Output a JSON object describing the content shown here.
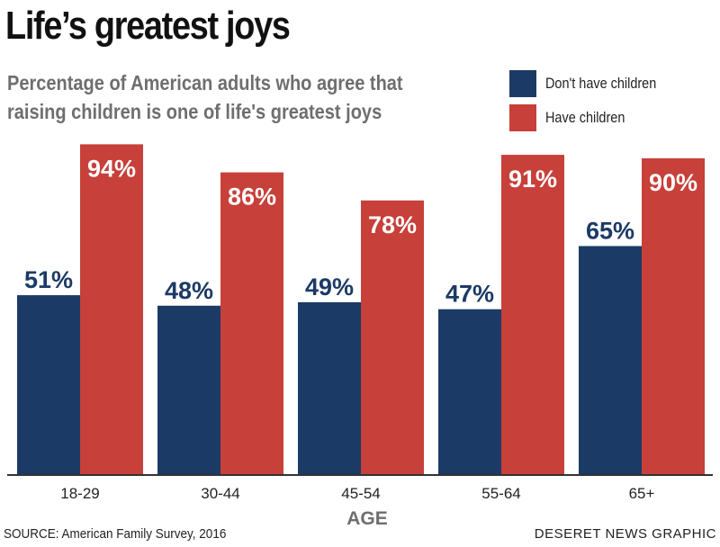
{
  "header": {
    "title": "Life’s greatest joys",
    "subtitle_line1": "Percentage of American adults who agree that",
    "subtitle_line2": "raising children is one of life's greatest joys"
  },
  "footer": {
    "source": "SOURCE: American Family Survey, 2016",
    "credit": "DESERET NEWS GRAPHIC"
  },
  "chart_data": {
    "type": "bar",
    "title": "Life’s greatest joys",
    "subtitle": "Percentage of American adults who agree that raising children is one of life's greatest joys",
    "xlabel": "AGE",
    "ylabel": "",
    "categories": [
      "18-29",
      "30-44",
      "45-54",
      "55-64",
      "65+"
    ],
    "series": [
      {
        "name": "Don't have children",
        "color": "#1c3a66",
        "values": [
          51,
          48,
          49,
          47,
          65
        ],
        "labels": [
          "51%",
          "48%",
          "49%",
          "47%",
          "65%"
        ]
      },
      {
        "name": "Have children",
        "color": "#c7403a",
        "values": [
          94,
          86,
          78,
          91,
          90
        ],
        "labels": [
          "94%",
          "86%",
          "78%",
          "91%",
          "90%"
        ]
      }
    ],
    "ylim": [
      0,
      100
    ],
    "grid": false,
    "legend": "top-right"
  }
}
